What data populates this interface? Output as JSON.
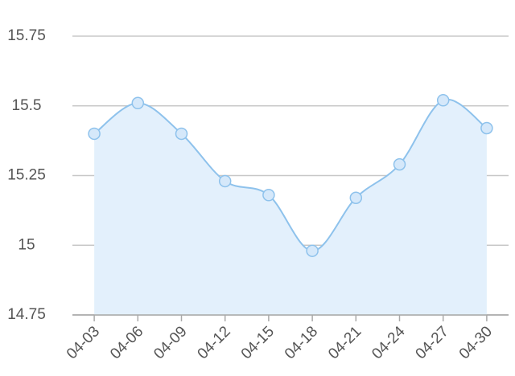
{
  "chart_data": {
    "type": "line",
    "categories": [
      "04-03",
      "04-06",
      "04-09",
      "04-12",
      "04-15",
      "04-18",
      "04-21",
      "04-24",
      "04-27",
      "04-30"
    ],
    "values": [
      15.4,
      15.51,
      15.4,
      15.23,
      15.18,
      14.98,
      15.17,
      15.29,
      15.52,
      15.42
    ],
    "color": "#8ec2ec",
    "area_color": "#e3f0fc",
    "marker_fill": "#d5e8fa",
    "ylim": [
      14.75,
      15.75
    ],
    "yticks": [
      14.75,
      15,
      15.25,
      15.5,
      15.75
    ],
    "grid": true,
    "smooth": true
  }
}
